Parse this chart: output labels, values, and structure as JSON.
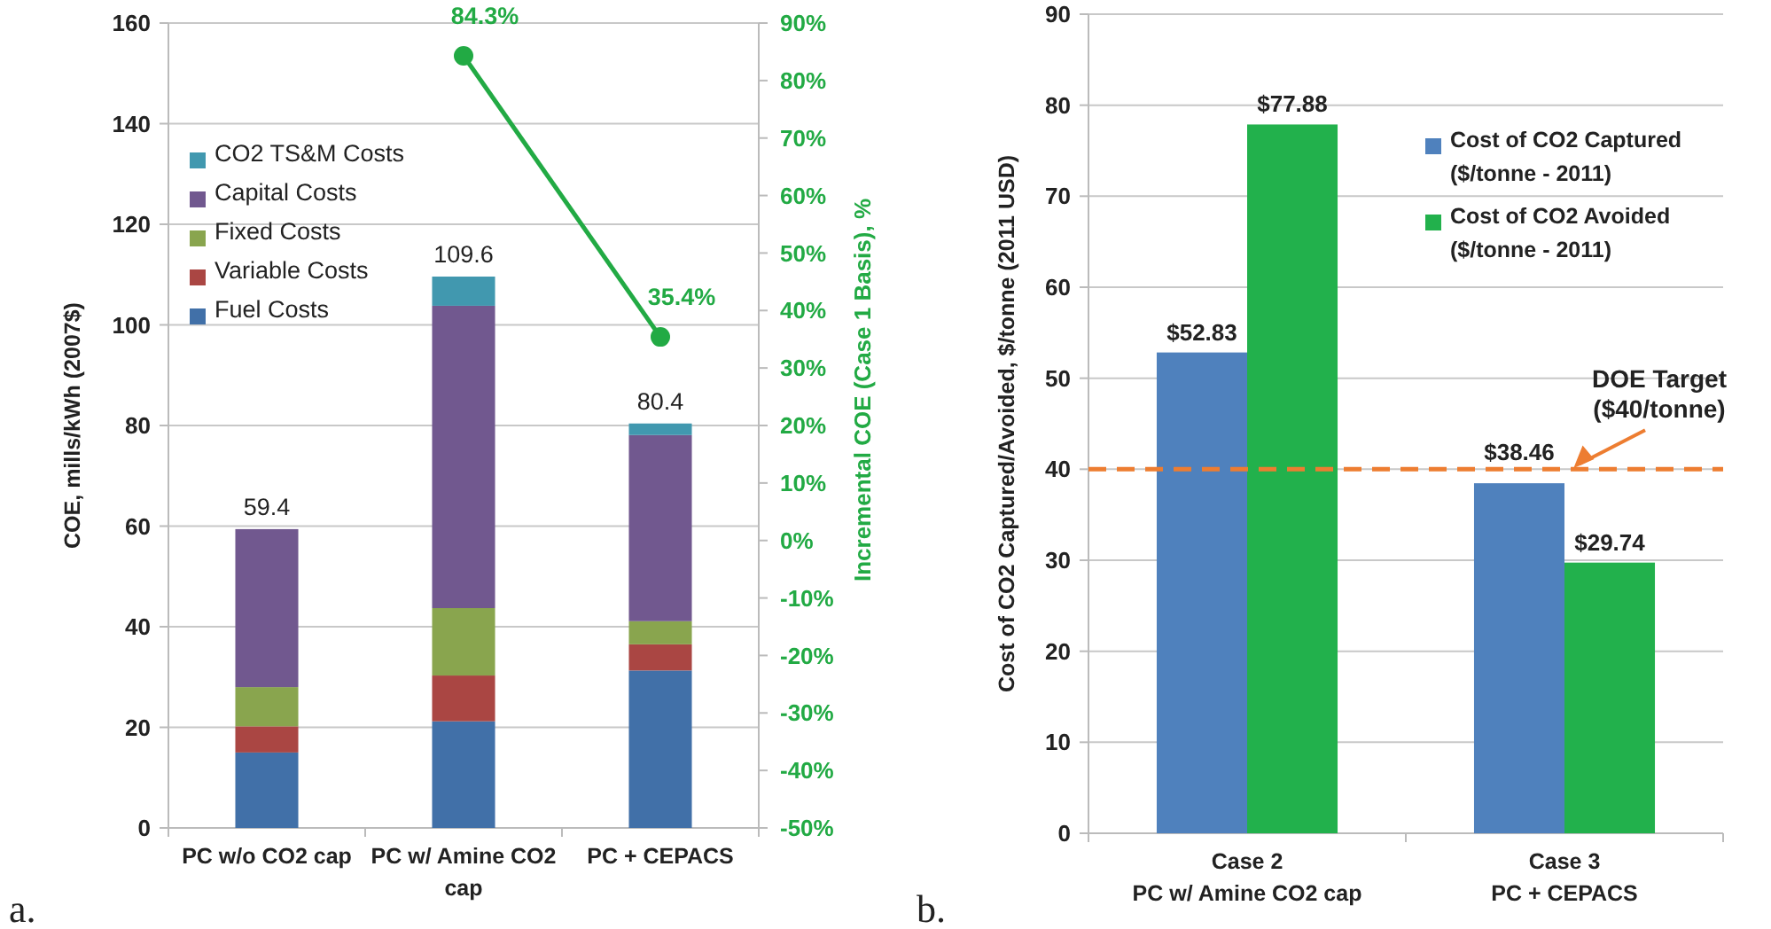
{
  "chart_data": [
    {
      "type": "bar",
      "stacked": true,
      "categories": [
        "PC w/o CO2 cap",
        "PC w/ Amine CO2 cap",
        "PC + CEPACS"
      ],
      "series": [
        {
          "name": "Fuel Costs",
          "color": "#4170a8",
          "values": [
            15.0,
            21.2,
            31.3
          ]
        },
        {
          "name": "Variable Costs",
          "color": "#aa4643",
          "values": [
            5.2,
            9.1,
            5.2
          ]
        },
        {
          "name": "Fixed Costs",
          "color": "#89a54e",
          "values": [
            7.8,
            13.4,
            4.6
          ]
        },
        {
          "name": "Capital Costs",
          "color": "#71588f",
          "values": [
            31.4,
            60.1,
            37.0
          ]
        },
        {
          "name": "CO2 TS&M Costs",
          "color": "#4198af",
          "values": [
            0,
            5.8,
            2.3
          ]
        },
        {
          "type": "line",
          "axis": "y2",
          "color": "#22aa44",
          "values": [
            null,
            84.3,
            35.4
          ],
          "value_labels": [
            null,
            "84.3%",
            "35.4%"
          ]
        }
      ],
      "totals": [
        "59.4",
        "109.6",
        "80.4"
      ],
      "ylabel": "COE, mills/kWh (2007$)",
      "y2label": "Incremental COE (Case 1 Basis), %",
      "ylim": [
        0,
        160
      ],
      "yticks": [
        0,
        20,
        40,
        60,
        80,
        100,
        120,
        140,
        160
      ],
      "y2lim": [
        -50,
        90
      ],
      "y2ticks": [
        {
          "value": -50,
          "label": "-50%"
        },
        {
          "value": -40,
          "label": "-40%"
        },
        {
          "value": -30,
          "label": "-30%"
        },
        {
          "value": -20,
          "label": "-20%"
        },
        {
          "value": -10,
          "label": "-10%"
        },
        {
          "value": 0,
          "label": "0%"
        },
        {
          "value": 10,
          "label": "10%"
        },
        {
          "value": 20,
          "label": "20%"
        },
        {
          "value": 30,
          "label": "30%"
        },
        {
          "value": 40,
          "label": "40%"
        },
        {
          "value": 50,
          "label": "50%"
        },
        {
          "value": 60,
          "label": "60%"
        },
        {
          "value": 70,
          "label": "70%"
        },
        {
          "value": 80,
          "label": "80%"
        },
        {
          "value": 90,
          "label": "90%"
        }
      ],
      "grid": "y",
      "legend": "top left",
      "marker": "circle",
      "annotations": [
        "a."
      ]
    },
    {
      "type": "bar",
      "categories": [
        "Case 2\nPC w/ Amine CO2 cap",
        "Case 3\nPC + CEPACS"
      ],
      "series": [
        {
          "name": "Cost of CO2 Captured ($/tonne - 2011)",
          "color": "#4f81bd",
          "values": [
            52.83,
            38.46
          ],
          "value_labels": [
            "$52.83",
            "$38.46"
          ]
        },
        {
          "name": "Cost of CO2 Avoided ($/tonne - 2011)",
          "color": "#22b14c",
          "values": [
            77.88,
            29.74
          ],
          "value_labels": [
            "$77.88",
            "$29.74"
          ]
        }
      ],
      "ylabel": "Cost of CO2 Captured/Avoided, $/tonne (2011 USD)",
      "ylim": [
        0,
        90
      ],
      "yticks": [
        0,
        10,
        20,
        30,
        40,
        50,
        60,
        70,
        80,
        90
      ],
      "ref_lines": [
        {
          "axis": "y",
          "value": 40,
          "label": "DOE Target ($40/tonne)",
          "color": "#ed7d31",
          "line_style": "dashed"
        }
      ],
      "grid": "y",
      "legend": "top right",
      "annotations": [
        "b."
      ]
    }
  ]
}
